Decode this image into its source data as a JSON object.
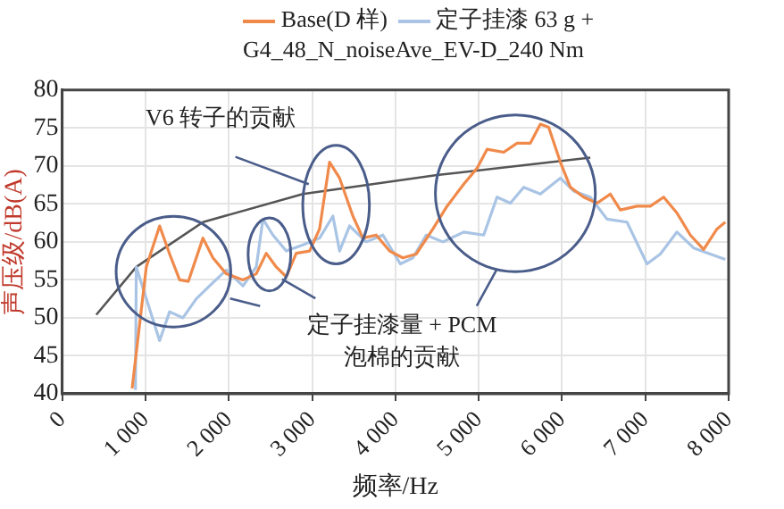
{
  "chart_data": {
    "type": "line",
    "xlabel": "频率/Hz",
    "ylabel": "声压级/dB(A)",
    "xlim": [
      0,
      8000
    ],
    "ylim": [
      40,
      80
    ],
    "xticks": [
      0,
      {
        "value": 1000,
        "label": "1 000"
      },
      {
        "value": 2000,
        "label": "2 000"
      },
      {
        "value": 3000,
        "label": "3 000"
      },
      {
        "value": 4000,
        "label": "4 000"
      },
      {
        "value": 5000,
        "label": "5 000"
      },
      {
        "value": 6000,
        "label": "6 000"
      },
      {
        "value": 7000,
        "label": "7 000"
      },
      {
        "value": 8000,
        "label": "8 000"
      }
    ],
    "yticks": [
      40,
      45,
      50,
      55,
      60,
      65,
      70,
      75,
      80
    ],
    "grid": true,
    "legend": "top",
    "marker": "none",
    "line_style": "solid",
    "annotations": [
      "V6 转子的贡献",
      "定子挂漆量 + PCM 泡棉的贡献"
    ],
    "series": [
      {
        "name": "Base(D 样)",
        "color": "#f08a4b",
        "x": [
          840,
          1010,
          1170,
          1290,
          1410,
          1515,
          1690,
          1810,
          1970,
          2170,
          2330,
          2450,
          2570,
          2690,
          2810,
          2970,
          3090,
          3210,
          3330,
          3490,
          3610,
          3770,
          3930,
          4090,
          4250,
          4450,
          4620,
          4820,
          4980,
          5100,
          5300,
          5460,
          5620,
          5740,
          5840,
          5980,
          6100,
          6260,
          6420,
          6580,
          6700,
          6900,
          7060,
          7220,
          7380,
          7540,
          7700,
          7860,
          7960
        ],
        "values": [
          40.7,
          56.7,
          62.1,
          58.4,
          55,
          54.8,
          60.5,
          57.9,
          55.8,
          55,
          55.8,
          58.5,
          56.7,
          55.4,
          58.5,
          58.8,
          61.7,
          70.5,
          68.4,
          63.4,
          60.5,
          60.9,
          58.8,
          57.9,
          58.4,
          61.7,
          64.7,
          67.6,
          69.7,
          72.2,
          71.8,
          73,
          73,
          75.5,
          75.1,
          70.5,
          67.2,
          65.9,
          65.1,
          66.3,
          64.2,
          64.7,
          64.7,
          65.9,
          63.8,
          60.9,
          59,
          61.7,
          62.6
        ]
      },
      {
        "name": "定子挂漆 63 g + G4_48_N_noiseAve_EV-D_240 Nm",
        "color": "#a9c4e4",
        "x": [
          880,
          890,
          1170,
          1290,
          1450,
          1610,
          1770,
          1970,
          2170,
          2330,
          2410,
          2530,
          2690,
          2890,
          3090,
          3250,
          3330,
          3450,
          3650,
          3850,
          4060,
          4210,
          4370,
          4570,
          4820,
          5060,
          5220,
          5380,
          5540,
          5740,
          5980,
          6140,
          6340,
          6540,
          6780,
          7020,
          7180,
          7380,
          7580,
          7780,
          7960
        ],
        "values": [
          40.5,
          56.7,
          47,
          50.8,
          50,
          52.5,
          54.2,
          56.3,
          54.2,
          56.7,
          63,
          60.9,
          58.8,
          59.6,
          60.5,
          63.4,
          58.8,
          62.1,
          60,
          60.9,
          57.1,
          57.9,
          60.9,
          60,
          61.3,
          60.9,
          65.9,
          65.1,
          67.2,
          66.3,
          68.4,
          66.7,
          65.9,
          63,
          62.6,
          57.1,
          58.4,
          61.3,
          59.2,
          58.4,
          57.7
        ]
      },
      {
        "type": "line",
        "color": "#555555",
        "x": [
          410,
          890,
          1690,
          2890,
          4500,
          6340
        ],
        "values": [
          50.4,
          56.7,
          62.6,
          66.3,
          68.8,
          71.1
        ]
      }
    ]
  }
}
